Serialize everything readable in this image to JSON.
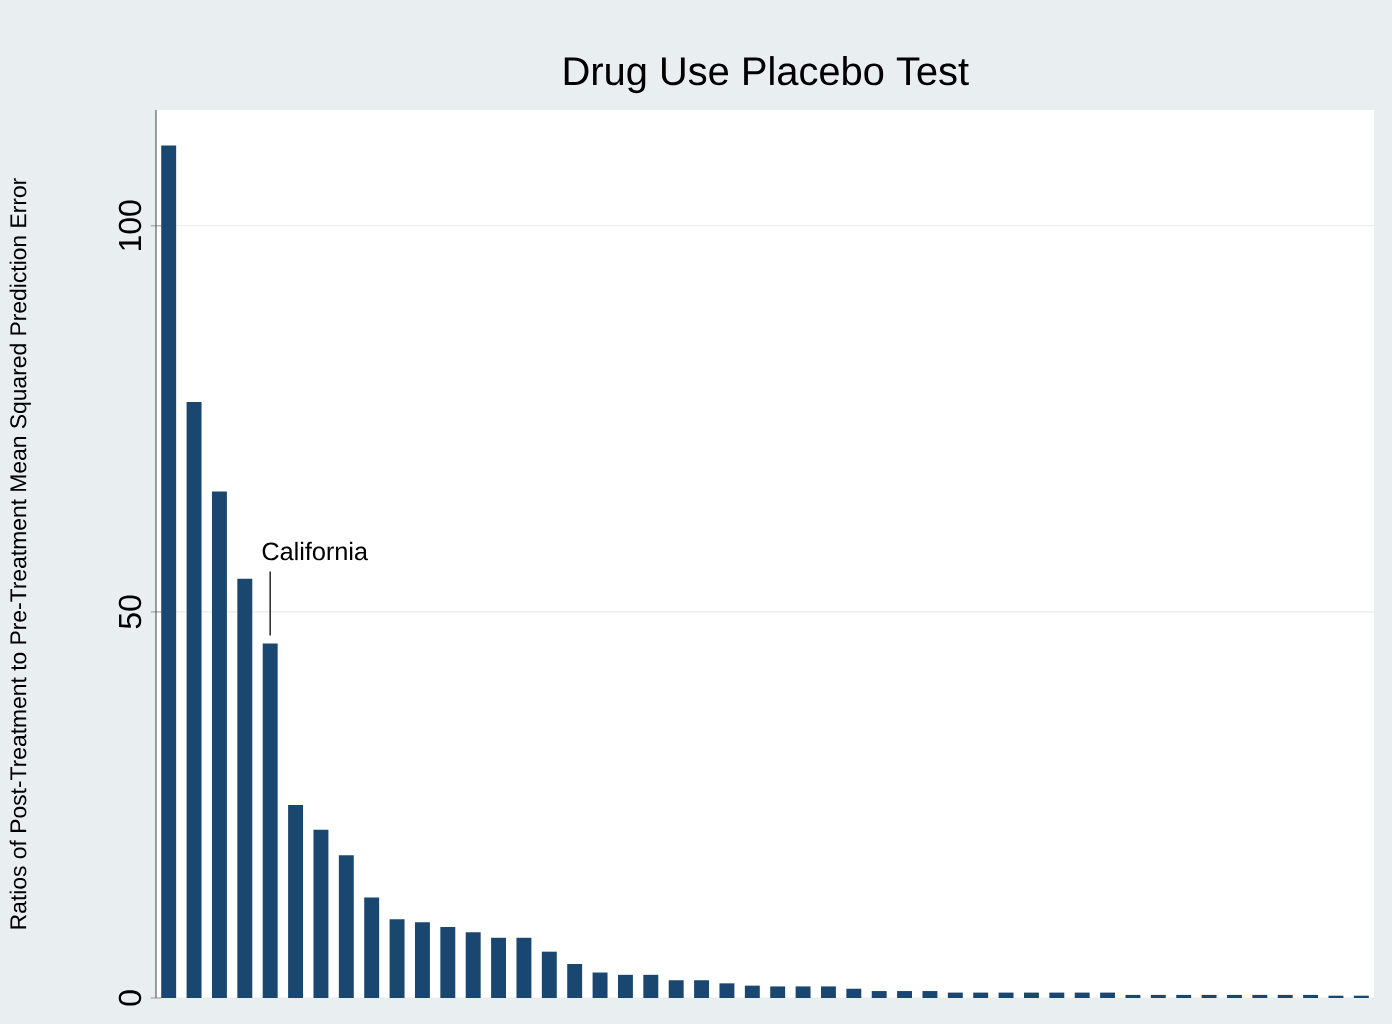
{
  "chart_data": {
    "type": "bar",
    "title": "Drug Use Placebo Test",
    "ylabel": "Ratios of Post-Treatment to Pre-Treatment Mean Squared Prediction Error",
    "categories": [
      null,
      null,
      null,
      null,
      null,
      null,
      null,
      null,
      null,
      null,
      null,
      null,
      null,
      null,
      null,
      null,
      null,
      null,
      null,
      null,
      null,
      null,
      null,
      null,
      null,
      null,
      null,
      null,
      null,
      null,
      null,
      null,
      null,
      null,
      null,
      null,
      null,
      null,
      null,
      null,
      null,
      null,
      null,
      null,
      null,
      null,
      null,
      null
    ],
    "values": [
      110.4,
      77.2,
      65.6,
      54.3,
      45.9,
      25.0,
      21.8,
      18.5,
      13.0,
      10.2,
      9.8,
      9.2,
      8.5,
      7.8,
      7.8,
      6.0,
      4.4,
      3.3,
      3.0,
      3.0,
      2.3,
      2.3,
      1.9,
      1.6,
      1.5,
      1.5,
      1.5,
      1.2,
      0.9,
      0.9,
      0.9,
      0.7,
      0.7,
      0.7,
      0.7,
      0.7,
      0.7,
      0.7,
      0.4,
      0.4,
      0.4,
      0.4,
      0.4,
      0.4,
      0.4,
      0.4,
      0.3,
      0.3
    ],
    "color": "#1a476f",
    "ylim": [
      0,
      115
    ],
    "yticks": [
      0,
      50,
      100
    ],
    "grid": "y",
    "annotations": [
      "California"
    ]
  }
}
